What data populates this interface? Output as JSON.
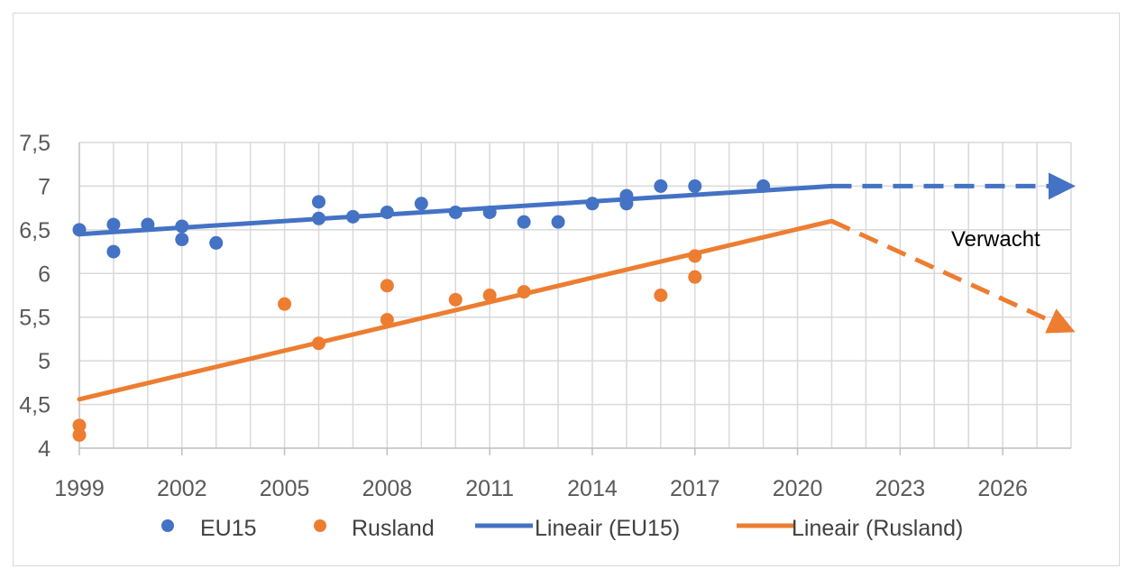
{
  "chart_data": {
    "type": "scatter",
    "title": "",
    "xlabel": "",
    "ylabel": "",
    "xlim": [
      1999,
      2028
    ],
    "ylim": [
      4,
      7.5
    ],
    "x_ticks": [
      "1999",
      "2002",
      "2005",
      "2008",
      "2011",
      "2014",
      "2017",
      "2020",
      "2023",
      "2026"
    ],
    "y_ticks": [
      "4",
      "4,5",
      "5",
      "5,5",
      "6",
      "6,5",
      "7",
      "7,5"
    ],
    "grid": true,
    "legend_position": "bottom",
    "series": [
      {
        "name": "EU15",
        "kind": "scatter",
        "color": "#4472c4",
        "points": [
          [
            1999,
            6.5
          ],
          [
            2000,
            6.56
          ],
          [
            2000,
            6.25
          ],
          [
            2001,
            6.56
          ],
          [
            2002,
            6.54
          ],
          [
            2002,
            6.39
          ],
          [
            2003,
            6.35
          ],
          [
            2006,
            6.82
          ],
          [
            2006,
            6.63
          ],
          [
            2007,
            6.65
          ],
          [
            2008,
            6.7
          ],
          [
            2009,
            6.8
          ],
          [
            2010,
            6.7
          ],
          [
            2011,
            6.7
          ],
          [
            2012,
            6.59
          ],
          [
            2013,
            6.59
          ],
          [
            2014,
            6.8
          ],
          [
            2015,
            6.89
          ],
          [
            2015,
            6.8
          ],
          [
            2016,
            7.0
          ],
          [
            2017,
            7.0
          ],
          [
            2019,
            7.0
          ]
        ]
      },
      {
        "name": "Rusland",
        "kind": "scatter",
        "color": "#ed7d31",
        "points": [
          [
            1999,
            4.26
          ],
          [
            1999,
            4.15
          ],
          [
            2005,
            5.65
          ],
          [
            2006,
            5.2
          ],
          [
            2008,
            5.86
          ],
          [
            2008,
            5.47
          ],
          [
            2010,
            5.7
          ],
          [
            2011,
            5.75
          ],
          [
            2012,
            5.79
          ],
          [
            2016,
            5.75
          ],
          [
            2017,
            6.2
          ],
          [
            2017,
            5.96
          ]
        ]
      },
      {
        "name": "Lineair (EU15)",
        "kind": "line",
        "color": "#4472c4",
        "points": [
          [
            1999,
            6.45
          ],
          [
            2021,
            7.0
          ]
        ]
      },
      {
        "name": "Lineair (Rusland)",
        "kind": "line",
        "color": "#ed7d31",
        "points": [
          [
            1999,
            4.56
          ],
          [
            2021,
            6.6
          ]
        ]
      }
    ],
    "projections": [
      {
        "color": "#4472c4",
        "points": [
          [
            2021,
            7.0
          ],
          [
            2028,
            7.0
          ]
        ]
      },
      {
        "color": "#ed7d31",
        "points": [
          [
            2021,
            6.6
          ],
          [
            2028,
            5.35
          ]
        ]
      }
    ],
    "annotations": [
      {
        "text": "Verwacht"
      }
    ]
  }
}
